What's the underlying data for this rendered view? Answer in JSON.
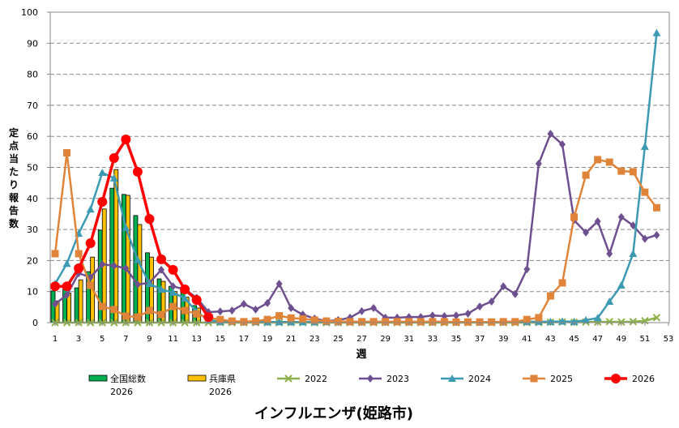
{
  "chart_data": {
    "type": "line",
    "title": "インフルエンザ(姫路市)",
    "xlabel": "週",
    "ylabel": "定点当たり報告数",
    "ylim": [
      0,
      100
    ],
    "yticks": [
      0,
      10,
      20,
      30,
      40,
      50,
      60,
      70,
      80,
      90,
      100
    ],
    "xlim": [
      1,
      53
    ],
    "xticks": [
      1,
      3,
      5,
      7,
      9,
      11,
      13,
      15,
      17,
      19,
      21,
      23,
      25,
      27,
      29,
      31,
      33,
      35,
      37,
      39,
      41,
      43,
      45,
      47,
      49,
      51,
      53
    ],
    "grid": true,
    "legend_position": "bottom",
    "bar_series": [
      {
        "name": "全国総数\n2026",
        "label1": "全国総数",
        "label2": "2026",
        "color": "#00B050",
        "x": [
          1,
          2,
          3,
          4,
          5,
          6,
          7,
          8,
          9,
          10,
          11,
          12,
          13
        ],
        "values": [
          10.2,
          10.7,
          11.2,
          16.4,
          29.8,
          43.3,
          41.3,
          34.5,
          22.5,
          14.1,
          11.7,
          9.9,
          5.5
        ]
      },
      {
        "name": "兵庫県\n2026",
        "label1": "兵庫県",
        "label2": "2026",
        "color": "#FFC000",
        "x": [
          1,
          2,
          3,
          4,
          5,
          6,
          7,
          8,
          9,
          10,
          11,
          12,
          13
        ],
        "values": [
          7.0,
          9.5,
          13.8,
          21.1,
          36.6,
          49.3,
          41.0,
          31.6,
          21.1,
          13.3,
          10.0,
          8.2,
          4.7
        ]
      }
    ],
    "series": [
      {
        "name": "2022",
        "color": "#8DB04A",
        "marker": "x",
        "values": [
          0,
          0,
          0,
          0,
          0,
          0,
          0,
          0,
          0,
          0,
          0,
          0,
          0,
          0,
          0,
          0,
          0,
          0,
          0,
          0,
          0,
          0,
          0,
          0,
          0,
          0,
          0,
          0,
          0,
          0,
          0,
          0,
          0,
          0,
          0,
          0,
          0,
          0,
          0,
          0,
          0,
          0,
          0.1,
          0.2,
          0.1,
          0.2,
          0.2,
          0.3,
          0.2,
          0.3,
          0.6,
          1.6
        ]
      },
      {
        "name": "2023",
        "color": "#6E4F8F",
        "marker": "diamond",
        "values": [
          6.0,
          8.9,
          15.9,
          14.6,
          18.8,
          18.3,
          17.5,
          12.3,
          12.8,
          17.0,
          11.7,
          10.7,
          8.0,
          3.4,
          3.6,
          3.9,
          6.0,
          4.2,
          6.3,
          12.5,
          4.7,
          2.6,
          1.3,
          0.5,
          0.8,
          1.6,
          3.7,
          4.7,
          1.6,
          1.6,
          1.8,
          1.8,
          2.3,
          2.1,
          2.3,
          2.9,
          5.2,
          6.8,
          11.7,
          9.2,
          17.2,
          51.2,
          60.8,
          57.4,
          33.0,
          29.0,
          32.6,
          22.2,
          34.0,
          31.3,
          27.0,
          28.2
        ]
      },
      {
        "name": "2024",
        "color": "#3C9AB2",
        "marker": "triangle",
        "values": [
          12.5,
          19.0,
          28.7,
          36.5,
          48.3,
          46.5,
          30.5,
          20.2,
          12.5,
          10.7,
          9.7,
          7.8,
          3.5,
          0.8,
          0.3,
          0.3,
          0.2,
          0.2,
          0.2,
          0.2,
          0.2,
          0.2,
          0.2,
          0.2,
          0.2,
          0.2,
          0.2,
          0.2,
          0.2,
          0.2,
          0.2,
          0.2,
          0.2,
          0.2,
          0.2,
          0.2,
          0.2,
          0.2,
          0.2,
          0.2,
          0.3,
          0.3,
          0.3,
          0.4,
          0.3,
          0.8,
          1.5,
          6.8,
          12.0,
          22.2,
          56.7,
          93.3
        ]
      },
      {
        "name": "2025",
        "color": "#E0843A",
        "marker": "square",
        "values": [
          22.2,
          54.7,
          22.2,
          12.0,
          5.2,
          4.2,
          2.1,
          1.8,
          3.9,
          2.6,
          5.2,
          3.9,
          2.8,
          1.5,
          1.0,
          0.5,
          0.3,
          0.5,
          1.0,
          2.2,
          1.5,
          1.2,
          0.8,
          0.5,
          0.4,
          0.3,
          0.3,
          0.3,
          0.3,
          0.3,
          0.3,
          0.3,
          0.3,
          0.3,
          0.2,
          0.2,
          0.2,
          0.2,
          0.3,
          0.3,
          1.0,
          1.6,
          8.6,
          12.8,
          34.0,
          47.5,
          52.5,
          51.7,
          48.8,
          48.6,
          42.0,
          37.0
        ]
      },
      {
        "name": "2026",
        "color": "#FF0000",
        "marker": "circle",
        "values": [
          11.7,
          11.7,
          17.5,
          25.6,
          38.9,
          53.0,
          59.0,
          48.6,
          33.4,
          20.4,
          17.0,
          10.7,
          7.3,
          1.8
        ]
      }
    ]
  }
}
